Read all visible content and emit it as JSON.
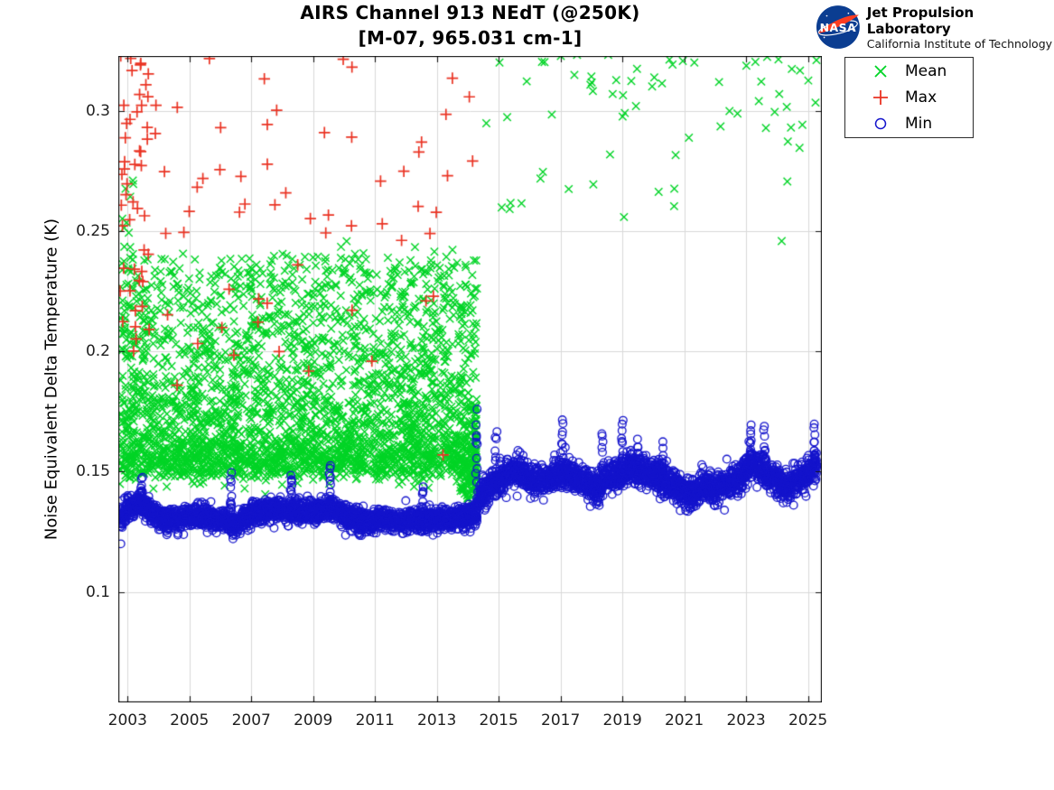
{
  "header": {
    "branding": {
      "org": "Jet Propulsion Laboratory",
      "sub": "California Institute of Technology",
      "nasa_text": "NASA",
      "logo_disc_color": "#0b3d91",
      "logo_swoosh_color": "#fc3d21",
      "logo_text_color": "#ffffff"
    }
  },
  "chart_data": {
    "type": "scatter",
    "title": "AIRS Channel 913 NEdT (@250K)",
    "subtitle": "[M-07, 965.031 cm-1]",
    "xlabel": "",
    "ylabel": "Noise Equivalent Delta Temperature (K)",
    "xlim": [
      2002.7,
      2025.45
    ],
    "ylim": [
      0.054,
      0.323
    ],
    "xticks": [
      2003,
      2005,
      2007,
      2009,
      2011,
      2013,
      2015,
      2017,
      2019,
      2021,
      2023,
      2025
    ],
    "xtick_labels": [
      "2003",
      "2005",
      "2007",
      "2009",
      "2011",
      "2013",
      "2015",
      "2017",
      "2019",
      "2021",
      "2023",
      "2025"
    ],
    "yticks": [
      0.1,
      0.15,
      0.2,
      0.25,
      0.3
    ],
    "ytick_labels": [
      "0.1",
      "0.15",
      "0.2",
      "0.25",
      "0.3"
    ],
    "grid": true,
    "grid_color": "#d9d9d9",
    "axis_color": "#111111",
    "tick_label_color": "#1f1f1f",
    "tick_length": 7,
    "legend": {
      "position": "outside-top-right",
      "items": [
        {
          "label": "Mean",
          "marker": "x",
          "color": "#00d426"
        },
        {
          "label": "Max",
          "marker": "+",
          "color": "#ea3323"
        },
        {
          "label": "Min",
          "marker": "o",
          "color": "#1414cc"
        }
      ]
    },
    "series": [
      {
        "name": "Mean",
        "marker": "x",
        "color": "#00d426",
        "size": 4.2,
        "lw": 1.4,
        "clusters": [
          {
            "kind": "cloud",
            "x": [
              2002.75,
              2014.3
            ],
            "n": 3000,
            "y_base": 0.152,
            "y_tail": 0.086,
            "tail_pow": 2.3,
            "sigma": 0.0038
          },
          {
            "kind": "band",
            "x": [
              2002.75,
              2003.25
            ],
            "n": 12,
            "y": [
              0.235,
              0.272
            ]
          },
          {
            "kind": "band",
            "x": [
              2013.7,
              2014.3
            ],
            "n": 60,
            "y": [
              0.138,
              0.156
            ]
          },
          {
            "kind": "column",
            "x": 2014.26,
            "n": 42,
            "y": [
              0.14,
              0.178
            ]
          },
          {
            "kind": "band",
            "x": [
              2014.35,
              2025.35
            ],
            "n": 75,
            "y": [
              0.297,
              0.328
            ],
            "bias_top": true,
            "bias_pow": 2.5
          },
          {
            "kind": "band",
            "x": [
              2014.35,
              2025.35
            ],
            "n": 20,
            "y": [
              0.258,
              0.3
            ]
          },
          {
            "kind": "points",
            "pts": [
              [
                2019.05,
                0.256
              ],
              [
                2024.15,
                0.246
              ],
              [
                2016.35,
                0.272
              ],
              [
                2021.15,
                0.289
              ],
              [
                2018.6,
                0.282
              ],
              [
                2014.6,
                0.295
              ]
            ]
          }
        ]
      },
      {
        "name": "Max",
        "marker": "+",
        "color": "#ea3323",
        "size": 6.3,
        "lw": 1.7,
        "clusters": [
          {
            "kind": "band",
            "x": [
              2002.75,
              2003.7
            ],
            "n": 66,
            "y": [
              0.2,
              0.336
            ],
            "bias_top": true,
            "bias_pow": 1.8
          },
          {
            "kind": "band",
            "x": [
              2003.7,
              2014.35
            ],
            "n": 46,
            "y": [
              0.235,
              0.332
            ]
          },
          {
            "kind": "band",
            "x": [
              2003.7,
              2014.35
            ],
            "n": 11,
            "y": [
              0.19,
              0.235
            ]
          },
          {
            "kind": "points",
            "pts": [
              [
                2004.6,
                0.186
              ],
              [
                2006.05,
                0.21
              ],
              [
                2007.9,
                0.2
              ],
              [
                2010.9,
                0.196
              ],
              [
                2013.2,
                0.157
              ],
              [
                2014.05,
                0.306
              ]
            ]
          }
        ]
      },
      {
        "name": "Min",
        "marker": "o",
        "color": "#1414cc",
        "size": 4.3,
        "lw": 1.3,
        "clusters": [
          {
            "kind": "trace",
            "n": 3000,
            "sigma": 0.0022,
            "baseline": [
              [
                2002.75,
                0.131
              ],
              [
                2003.0,
                0.134
              ],
              [
                2003.35,
                0.137
              ],
              [
                2003.7,
                0.134
              ],
              [
                2004.1,
                0.1305
              ],
              [
                2004.6,
                0.1295
              ],
              [
                2005.1,
                0.1315
              ],
              [
                2005.6,
                0.131
              ],
              [
                2006.0,
                0.13
              ],
              [
                2006.45,
                0.128
              ],
              [
                2007.0,
                0.1325
              ],
              [
                2007.6,
                0.134
              ],
              [
                2008.3,
                0.134
              ],
              [
                2009.0,
                0.133
              ],
              [
                2009.6,
                0.135
              ],
              [
                2010.1,
                0.131
              ],
              [
                2010.7,
                0.129
              ],
              [
                2011.3,
                0.13
              ],
              [
                2012.0,
                0.1295
              ],
              [
                2012.7,
                0.13
              ],
              [
                2013.4,
                0.13
              ],
              [
                2014.0,
                0.1315
              ],
              [
                2014.3,
                0.132
              ]
            ]
          },
          {
            "kind": "trace",
            "n": 2600,
            "sigma": 0.003,
            "baseline": [
              [
                2014.32,
                0.139
              ],
              [
                2014.6,
                0.143
              ],
              [
                2015.0,
                0.1465
              ],
              [
                2015.4,
                0.15
              ],
              [
                2015.8,
                0.149
              ],
              [
                2016.2,
                0.1465
              ],
              [
                2016.6,
                0.147
              ],
              [
                2017.0,
                0.15
              ],
              [
                2017.4,
                0.148
              ],
              [
                2017.8,
                0.1455
              ],
              [
                2018.2,
                0.1425
              ],
              [
                2018.55,
                0.147
              ],
              [
                2018.95,
                0.15
              ],
              [
                2019.3,
                0.152
              ],
              [
                2019.7,
                0.15
              ],
              [
                2020.1,
                0.1475
              ],
              [
                2020.5,
                0.145
              ],
              [
                2020.9,
                0.143
              ],
              [
                2021.2,
                0.1395
              ],
              [
                2021.6,
                0.1445
              ],
              [
                2022.0,
                0.1425
              ],
              [
                2022.4,
                0.1455
              ],
              [
                2022.8,
                0.147
              ],
              [
                2023.15,
                0.153
              ],
              [
                2023.55,
                0.151
              ],
              [
                2023.95,
                0.146
              ],
              [
                2024.35,
                0.1435
              ],
              [
                2024.7,
                0.147
              ],
              [
                2025.05,
                0.15
              ],
              [
                2025.3,
                0.153
              ]
            ]
          },
          {
            "kind": "column",
            "x": 2003.45,
            "n": 10,
            "y": [
              0.138,
              0.147
            ]
          },
          {
            "kind": "column",
            "x": 2006.35,
            "n": 12,
            "y": [
              0.129,
              0.149
            ]
          },
          {
            "kind": "column",
            "x": 2008.3,
            "n": 10,
            "y": [
              0.135,
              0.15
            ]
          },
          {
            "kind": "column",
            "x": 2009.55,
            "n": 11,
            "y": [
              0.136,
              0.152
            ]
          },
          {
            "kind": "column",
            "x": 2012.55,
            "n": 9,
            "y": [
              0.13,
              0.145
            ]
          },
          {
            "kind": "column",
            "x": 2014.28,
            "n": 14,
            "y": [
              0.133,
              0.174
            ]
          },
          {
            "kind": "column",
            "x": 2014.9,
            "n": 10,
            "y": [
              0.145,
              0.166
            ]
          },
          {
            "kind": "column",
            "x": 2017.05,
            "n": 11,
            "y": [
              0.151,
              0.171
            ]
          },
          {
            "kind": "column",
            "x": 2018.35,
            "n": 10,
            "y": [
              0.144,
              0.167
            ]
          },
          {
            "kind": "column",
            "x": 2019.0,
            "n": 11,
            "y": [
              0.151,
              0.172
            ]
          },
          {
            "kind": "column",
            "x": 2019.5,
            "n": 8,
            "y": [
              0.152,
              0.163
            ]
          },
          {
            "kind": "column",
            "x": 2020.3,
            "n": 8,
            "y": [
              0.148,
              0.162
            ]
          },
          {
            "kind": "column",
            "x": 2023.15,
            "n": 10,
            "y": [
              0.154,
              0.17
            ]
          },
          {
            "kind": "column",
            "x": 2023.6,
            "n": 9,
            "y": [
              0.152,
              0.168
            ]
          },
          {
            "kind": "column",
            "x": 2025.2,
            "n": 10,
            "y": [
              0.151,
              0.17
            ]
          },
          {
            "kind": "points",
            "pts": [
              [
                2002.78,
                0.12
              ],
              [
                2004.3,
                0.1245
              ],
              [
                2006.4,
                0.1235
              ],
              [
                2010.5,
                0.124
              ],
              [
                2013.9,
                0.125
              ],
              [
                2018.25,
                0.136
              ],
              [
                2021.2,
                0.135
              ],
              [
                2022.3,
                0.134
              ],
              [
                2024.2,
                0.137
              ]
            ]
          }
        ]
      }
    ]
  }
}
